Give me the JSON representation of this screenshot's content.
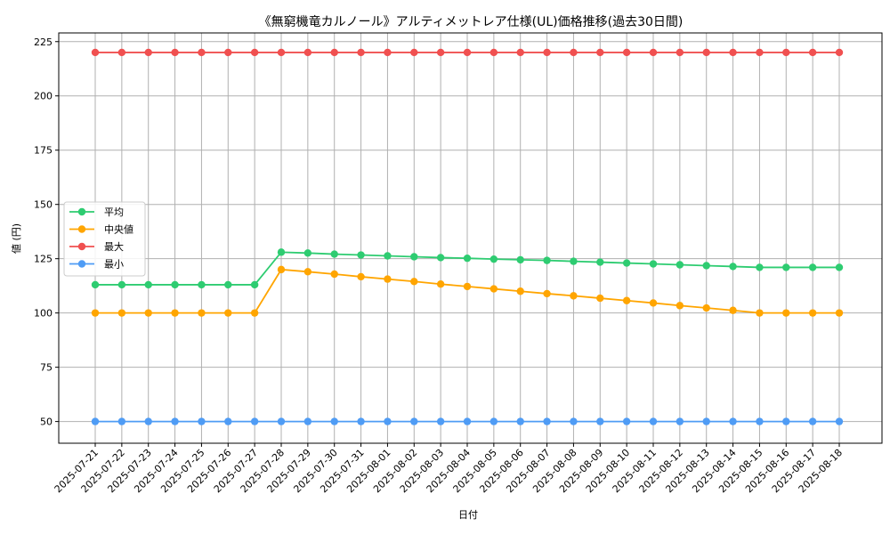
{
  "chart_data": {
    "type": "line",
    "title": "《無窮機竜カルノール》アルティメットレア仕様(UL)価格推移(過去30日間)",
    "xlabel": "日付",
    "ylabel": "値 (円)",
    "ylim": [
      40,
      229
    ],
    "yticks": [
      50,
      75,
      100,
      125,
      150,
      175,
      200,
      225
    ],
    "grid": true,
    "legend_position": "center-left",
    "categories": [
      "2025-07-21",
      "2025-07-22",
      "2025-07-23",
      "2025-07-24",
      "2025-07-25",
      "2025-07-26",
      "2025-07-27",
      "2025-07-28",
      "2025-07-29",
      "2025-07-30",
      "2025-07-31",
      "2025-08-01",
      "2025-08-02",
      "2025-08-03",
      "2025-08-04",
      "2025-08-05",
      "2025-08-06",
      "2025-08-07",
      "2025-08-08",
      "2025-08-09",
      "2025-08-10",
      "2025-08-11",
      "2025-08-12",
      "2025-08-13",
      "2025-08-14",
      "2025-08-15",
      "2025-08-16",
      "2025-08-17",
      "2025-08-18"
    ],
    "series": [
      {
        "name": "平均",
        "color": "#2ecc71",
        "values": [
          113,
          113,
          113,
          113,
          113,
          113,
          113,
          128,
          127.6,
          127.1,
          126.7,
          126.3,
          125.9,
          125.5,
          125.2,
          124.8,
          124.5,
          124.2,
          123.8,
          123.4,
          123,
          122.6,
          122.2,
          121.8,
          121.4,
          121,
          121,
          121,
          121
        ]
      },
      {
        "name": "中央値",
        "color": "#ffa500",
        "values": [
          100,
          100,
          100,
          100,
          100,
          100,
          100,
          120,
          119,
          117.9,
          116.7,
          115.6,
          114.5,
          113.3,
          112.2,
          111.1,
          110,
          108.9,
          107.9,
          106.8,
          105.7,
          104.6,
          103.4,
          102.3,
          101.2,
          100,
          100,
          100,
          100
        ]
      },
      {
        "name": "最大",
        "color": "#f05050",
        "values": [
          220,
          220,
          220,
          220,
          220,
          220,
          220,
          220,
          220,
          220,
          220,
          220,
          220,
          220,
          220,
          220,
          220,
          220,
          220,
          220,
          220,
          220,
          220,
          220,
          220,
          220,
          220,
          220,
          220
        ]
      },
      {
        "name": "最小",
        "color": "#4f9cf5",
        "values": [
          50,
          50,
          50,
          50,
          50,
          50,
          50,
          50,
          50,
          50,
          50,
          50,
          50,
          50,
          50,
          50,
          50,
          50,
          50,
          50,
          50,
          50,
          50,
          50,
          50,
          50,
          50,
          50,
          50
        ]
      }
    ]
  }
}
